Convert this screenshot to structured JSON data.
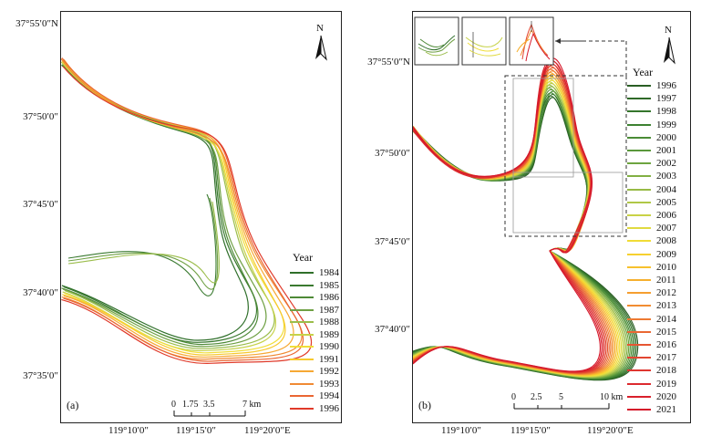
{
  "panel_a": {
    "tag": "(a)",
    "lat_labels": [
      "37°55′0″N",
      "37°50′0″",
      "37°45′0″",
      "37°40′0″",
      "37°35′0″"
    ],
    "lon_labels": [
      "119°10′0″",
      "119°15′0″",
      "119°20′0″E"
    ],
    "north_label": "N",
    "scale": {
      "ticks": [
        "0",
        "1.75",
        "3.5",
        "7 km"
      ]
    },
    "legend": {
      "title": "Year",
      "items": [
        {
          "label": "1984",
          "color": "#2f6f2a"
        },
        {
          "label": "1985",
          "color": "#3a7a30"
        },
        {
          "label": "1986",
          "color": "#4e8a37"
        },
        {
          "label": "1987",
          "color": "#6fa044"
        },
        {
          "label": "1988",
          "color": "#9bbd4b"
        },
        {
          "label": "1989",
          "color": "#c6d24a"
        },
        {
          "label": "1990",
          "color": "#f0de3a"
        },
        {
          "label": "1991",
          "color": "#f7c92d"
        },
        {
          "label": "1992",
          "color": "#f6a834"
        },
        {
          "label": "1993",
          "color": "#f08a34"
        },
        {
          "label": "1994",
          "color": "#ea6633"
        },
        {
          "label": "1996",
          "color": "#e03a2a"
        }
      ]
    }
  },
  "panel_b": {
    "tag": "(b)",
    "lat_labels": [
      "37°55′0″N",
      "37°50′0″",
      "37°45′0″",
      "37°40′0″"
    ],
    "lon_labels": [
      "119°10′0″",
      "119°15′0″",
      "119°20′0″E"
    ],
    "north_label": "N",
    "scale": {
      "ticks": [
        "0",
        "2.5",
        "5",
        "10 km"
      ]
    },
    "legend": {
      "title": "Year",
      "items": [
        {
          "label": "1996",
          "color": "#2a5e24"
        },
        {
          "label": "1997",
          "color": "#2f6a28"
        },
        {
          "label": "1998",
          "color": "#35762c"
        },
        {
          "label": "1999",
          "color": "#3d8131"
        },
        {
          "label": "2000",
          "color": "#4a8c36"
        },
        {
          "label": "2001",
          "color": "#5a983b"
        },
        {
          "label": "2002",
          "color": "#6da43f"
        },
        {
          "label": "2003",
          "color": "#82b043"
        },
        {
          "label": "2004",
          "color": "#98bb46"
        },
        {
          "label": "2005",
          "color": "#b0c747"
        },
        {
          "label": "2006",
          "color": "#c9d246"
        },
        {
          "label": "2007",
          "color": "#e0da40"
        },
        {
          "label": "2008",
          "color": "#f1dc36"
        },
        {
          "label": "2009",
          "color": "#f6d02f"
        },
        {
          "label": "2010",
          "color": "#f7c12d"
        },
        {
          "label": "2011",
          "color": "#f6b02e"
        },
        {
          "label": "2012",
          "color": "#f59e30"
        },
        {
          "label": "2013",
          "color": "#f28c32"
        },
        {
          "label": "2014",
          "color": "#ee7a33"
        },
        {
          "label": "2015",
          "color": "#ea6833"
        },
        {
          "label": "2016",
          "color": "#e65632"
        },
        {
          "label": "2017",
          "color": "#e24531"
        },
        {
          "label": "2018",
          "color": "#df3630"
        },
        {
          "label": "2019",
          "color": "#dc2a2e"
        },
        {
          "label": "2020",
          "color": "#d9202c"
        },
        {
          "label": "2021",
          "color": "#d5172a"
        }
      ]
    }
  }
}
